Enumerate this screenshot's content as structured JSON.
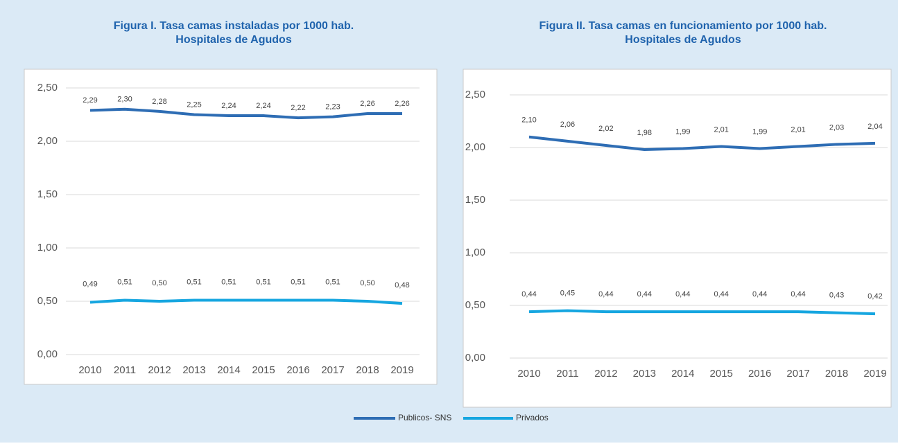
{
  "chart_data": [
    {
      "type": "line",
      "title": "Figura I. Tasa camas instaladas por 1000 hab.",
      "subtitle": "Hospitales de Agudos",
      "categories": [
        "2010",
        "2011",
        "2012",
        "2013",
        "2014",
        "2015",
        "2016",
        "2017",
        "2018",
        "2019"
      ],
      "series": [
        {
          "name": "Publicos- SNS",
          "color": "#2e6db4",
          "values": [
            2.29,
            2.3,
            2.28,
            2.25,
            2.24,
            2.24,
            2.22,
            2.23,
            2.26,
            2.26
          ],
          "value_labels": [
            "2,29",
            "2,30",
            "2,28",
            "2,25",
            "2,24",
            "2,24",
            "2,22",
            "2,23",
            "2,26",
            "2,26"
          ]
        },
        {
          "name": "Privados",
          "color": "#16a6e0",
          "values": [
            0.49,
            0.51,
            0.5,
            0.51,
            0.51,
            0.51,
            0.51,
            0.51,
            0.5,
            0.48
          ],
          "value_labels": [
            "0,49",
            "0,51",
            "0,50",
            "0,51",
            "0,51",
            "0,51",
            "0,51",
            "0,51",
            "0,50",
            "0,48"
          ]
        }
      ],
      "ylim": [
        0,
        2.5
      ],
      "yticks": [
        {
          "value": 0,
          "label": "0,00"
        },
        {
          "value": 0.5,
          "label": "0,50"
        },
        {
          "value": 1,
          "label": "1,00"
        },
        {
          "value": 1.5,
          "label": "1,50"
        },
        {
          "value": 2,
          "label": "2,00"
        },
        {
          "value": 2.5,
          "label": "2,50"
        }
      ],
      "grid": true
    },
    {
      "type": "line",
      "title": "Figura II. Tasa camas en funcionamiento por 1000 hab.",
      "subtitle": "Hospitales de Agudos",
      "categories": [
        "2010",
        "2011",
        "2012",
        "2013",
        "2014",
        "2015",
        "2016",
        "2017",
        "2018",
        "2019"
      ],
      "series": [
        {
          "name": "Publicos- SNS",
          "color": "#2e6db4",
          "values": [
            2.1,
            2.06,
            2.02,
            1.98,
            1.99,
            2.01,
            1.99,
            2.01,
            2.03,
            2.04
          ],
          "value_labels": [
            "2,10",
            "2,06",
            "2,02",
            "1,98",
            "1,99",
            "2,01",
            "1,99",
            "2,01",
            "2,03",
            "2,04"
          ]
        },
        {
          "name": "Privados",
          "color": "#16a6e0",
          "values": [
            0.44,
            0.45,
            0.44,
            0.44,
            0.44,
            0.44,
            0.44,
            0.44,
            0.43,
            0.42
          ],
          "value_labels": [
            "0,44",
            "0,45",
            "0,44",
            "0,44",
            "0,44",
            "0,44",
            "0,44",
            "0,44",
            "0,43",
            "0,42"
          ]
        }
      ],
      "ylim": [
        0,
        2.5
      ],
      "yticks": [
        {
          "value": 0,
          "label": "0,00"
        },
        {
          "value": 0.5,
          "label": "0,50"
        },
        {
          "value": 1,
          "label": "1,00"
        },
        {
          "value": 1.5,
          "label": "1,50"
        },
        {
          "value": 2,
          "label": "2,00"
        },
        {
          "value": 2.5,
          "label": "2,50"
        }
      ],
      "grid": true
    }
  ]
}
